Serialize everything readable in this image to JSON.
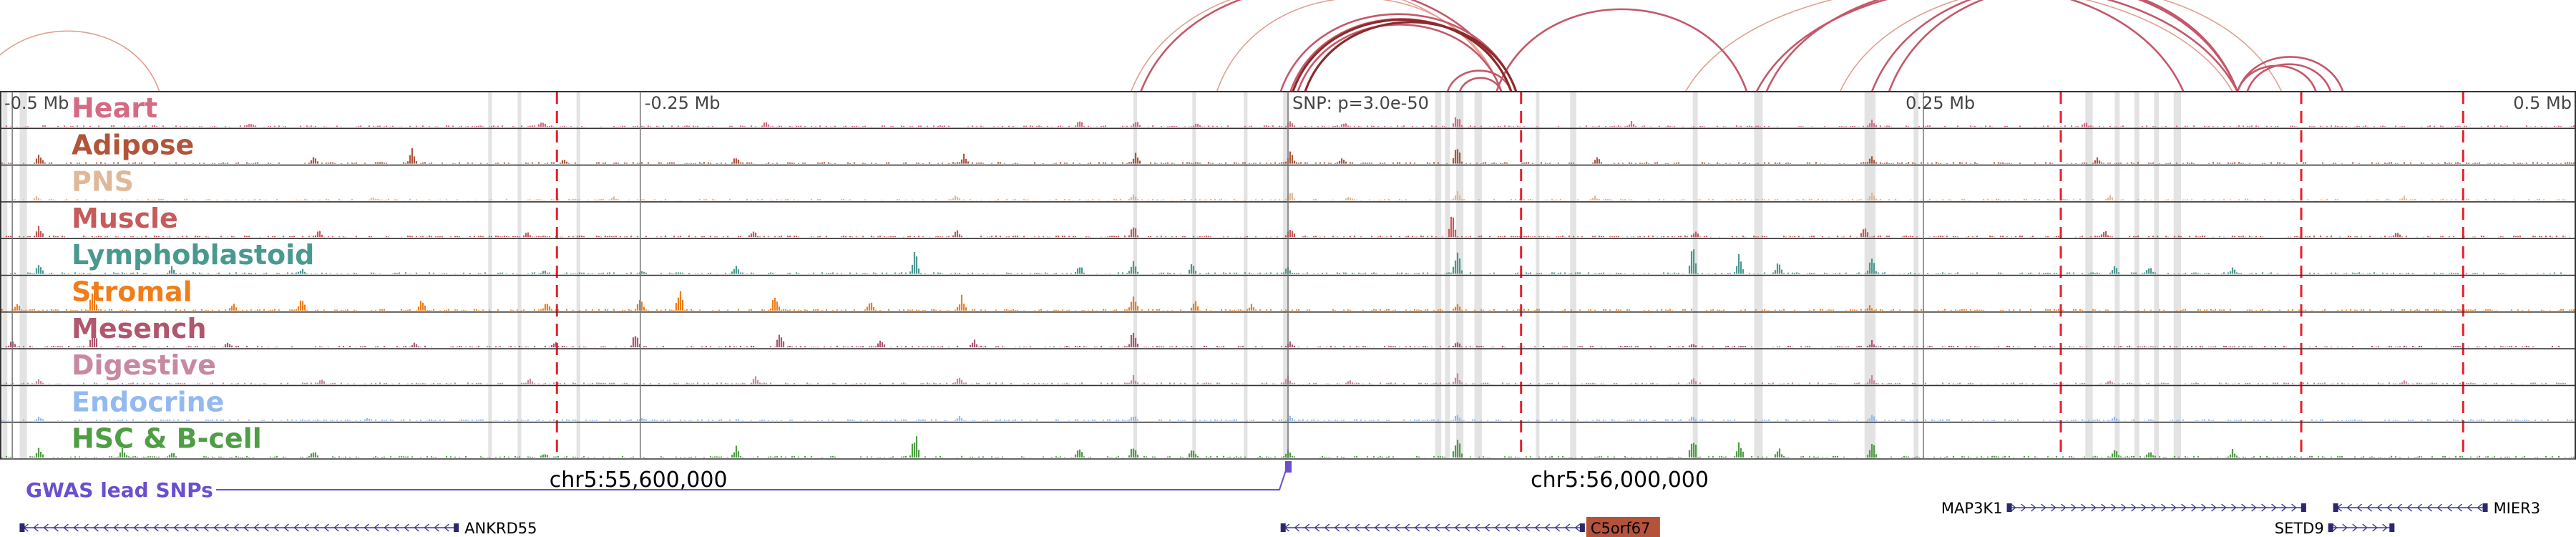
{
  "region": {
    "start": 55350000,
    "end": 56400000,
    "snp_position": 55875000
  },
  "ruler": {
    "labels": [
      {
        "text": "-0.5 Mb",
        "pos": 55350000,
        "anchor": "start"
      },
      {
        "text": "-0.25 Mb",
        "pos": 55611000,
        "anchor": "start"
      },
      {
        "text": "SNP: p=3.0e-50",
        "pos": 55875000,
        "anchor": "start"
      },
      {
        "text": "0.25 Mb",
        "pos": 56125000,
        "anchor": "start"
      },
      {
        "text": "0.5 Mb",
        "pos": 56400000,
        "anchor": "end"
      }
    ],
    "ticks": [
      55355000,
      55611000,
      55875000,
      56134000
    ]
  },
  "tracks": [
    {
      "name": "Heart",
      "color": "#d46b83"
    },
    {
      "name": "Adipose",
      "color": "#b0553a"
    },
    {
      "name": "PNS",
      "color": "#e0b899"
    },
    {
      "name": "Muscle",
      "color": "#c75a5a"
    },
    {
      "name": "Lymphoblastoid",
      "color": "#4a9990"
    },
    {
      "name": "Stromal",
      "color": "#f07d1a"
    },
    {
      "name": "Mesench",
      "color": "#b0566e"
    },
    {
      "name": "Digestive",
      "color": "#c888a2"
    },
    {
      "name": "Endocrine",
      "color": "#93baee"
    },
    {
      "name": "HSC & B-cell",
      "color": "#4f9e45"
    }
  ],
  "red_dashed_lines": [
    55577000,
    55970000,
    56190000,
    56288000,
    56354000
  ],
  "highlight_regions": [
    [
      55351000,
      55353000
    ],
    [
      55358000,
      55361000
    ],
    [
      55549000,
      55550500
    ],
    [
      55561000,
      55562500
    ],
    [
      55585000,
      55586500
    ],
    [
      55812000,
      55813500
    ],
    [
      55836000,
      55837500
    ],
    [
      55857000,
      55858500
    ],
    [
      55873000,
      55875500
    ],
    [
      55935000,
      55937500
    ],
    [
      55939000,
      55941000
    ],
    [
      55943500,
      55946500
    ],
    [
      55951000,
      55954000
    ],
    [
      55976000,
      55977500
    ],
    [
      55990000,
      55992500
    ],
    [
      56040000,
      56042000
    ],
    [
      56065000,
      56068500
    ],
    [
      56110000,
      56114500
    ],
    [
      56130000,
      56132000
    ],
    [
      56200000,
      56203000
    ],
    [
      56212000,
      56214000
    ],
    [
      56220000,
      56222000
    ],
    [
      56228000,
      56230000
    ],
    [
      56236000,
      56239000
    ]
  ],
  "arcs_coral": [
    [
      55340000,
      55415000
    ],
    [
      55811000,
      55962000
    ],
    [
      55846000,
      55962000
    ],
    [
      56037000,
      56260000
    ],
    [
      56100000,
      56280000
    ]
  ],
  "arcs_red": [
    [
      55815000,
      55966000
    ],
    [
      55872000,
      55968000
    ],
    [
      55876000,
      55966000
    ],
    [
      55879000,
      55962000
    ],
    [
      55940000,
      55966000
    ],
    [
      55945000,
      55962000
    ],
    [
      55960000,
      56062000
    ],
    [
      56066000,
      56262000
    ],
    [
      56070000,
      56240000
    ],
    [
      56113000,
      56262000
    ],
    [
      56120000,
      56262000
    ],
    [
      56262000,
      56294000
    ],
    [
      56262000,
      56305000
    ],
    [
      56266000,
      56300000
    ]
  ],
  "arcs_darkred": [
    [
      55877000,
      55966000
    ],
    [
      55882000,
      55968000
    ]
  ],
  "chart_data": {
    "type": "signal-tracks",
    "x_unit": "bp",
    "x_range": [
      55350000,
      56400000
    ],
    "tracks": [
      {
        "name": "Heart",
        "peaks": [
          [
            55452000,
            0.2
          ],
          [
            55571000,
            0.25
          ],
          [
            55662000,
            0.2
          ],
          [
            55790000,
            0.3
          ],
          [
            55813000,
            0.25
          ],
          [
            55838000,
            0.2
          ],
          [
            55876000,
            0.25
          ],
          [
            55898000,
            0.2
          ],
          [
            55944000,
            0.5
          ],
          [
            56015000,
            0.2
          ],
          [
            56113000,
            0.35
          ],
          [
            56200000,
            0.2
          ]
        ]
      },
      {
        "name": "Adipose",
        "peaks": [
          [
            55366000,
            0.5
          ],
          [
            55478000,
            0.35
          ],
          [
            55518000,
            0.55
          ],
          [
            55580000,
            0.2
          ],
          [
            55650000,
            0.3
          ],
          [
            55743000,
            0.35
          ],
          [
            55813000,
            0.5
          ],
          [
            55876000,
            0.6
          ],
          [
            55897000,
            0.3
          ],
          [
            55944000,
            0.7
          ],
          [
            56001000,
            0.25
          ],
          [
            56113000,
            0.35
          ],
          [
            56205000,
            0.25
          ]
        ]
      },
      {
        "name": "PNS",
        "peaks": [
          [
            55365000,
            0.2
          ],
          [
            55502000,
            0.15
          ],
          [
            55600000,
            0.15
          ],
          [
            55740000,
            0.25
          ],
          [
            55812000,
            0.25
          ],
          [
            55876000,
            0.4
          ],
          [
            55900000,
            0.2
          ],
          [
            55944000,
            0.35
          ],
          [
            56000000,
            0.2
          ],
          [
            56113000,
            0.3
          ],
          [
            56210000,
            0.2
          ],
          [
            56330000,
            0.15
          ]
        ]
      },
      {
        "name": "Muscle",
        "peaks": [
          [
            55366000,
            0.45
          ],
          [
            55480000,
            0.3
          ],
          [
            55565000,
            0.2
          ],
          [
            55657000,
            0.3
          ],
          [
            55740000,
            0.3
          ],
          [
            55812000,
            0.5
          ],
          [
            55876000,
            0.45
          ],
          [
            55942000,
            0.9
          ],
          [
            56041000,
            0.3
          ],
          [
            56110000,
            0.4
          ],
          [
            56208000,
            0.25
          ],
          [
            56327000,
            0.2
          ]
        ]
      },
      {
        "name": "Lymphoblastoid",
        "peaks": [
          [
            55366000,
            0.4
          ],
          [
            55420000,
            0.3
          ],
          [
            55473000,
            0.2
          ],
          [
            55572000,
            0.15
          ],
          [
            55612000,
            0.15
          ],
          [
            55650000,
            0.35
          ],
          [
            55723000,
            1.0
          ],
          [
            55790000,
            0.4
          ],
          [
            55812000,
            0.55
          ],
          [
            55836000,
            0.45
          ],
          [
            55875000,
            0.3
          ],
          [
            55944000,
            1.0
          ],
          [
            56040000,
            1.0
          ],
          [
            56059000,
            0.75
          ],
          [
            56075000,
            0.45
          ],
          [
            56113000,
            0.65
          ],
          [
            56212000,
            0.35
          ],
          [
            56226000,
            0.3
          ],
          [
            56260000,
            0.25
          ]
        ]
      },
      {
        "name": "Stromal",
        "peaks": [
          [
            55357000,
            0.3
          ],
          [
            55388000,
            0.95
          ],
          [
            55445000,
            0.3
          ],
          [
            55473000,
            0.55
          ],
          [
            55522000,
            0.55
          ],
          [
            55573000,
            0.4
          ],
          [
            55611000,
            0.5
          ],
          [
            55627000,
            0.85
          ],
          [
            55666000,
            0.75
          ],
          [
            55705000,
            0.4
          ],
          [
            55742000,
            0.55
          ],
          [
            55812000,
            0.8
          ],
          [
            55837000,
            0.45
          ],
          [
            55860000,
            0.25
          ],
          [
            55944000,
            0.25
          ],
          [
            56112000,
            0.2
          ]
        ]
      },
      {
        "name": "Mesench",
        "peaks": [
          [
            55355000,
            0.3
          ],
          [
            55388000,
            0.85
          ],
          [
            55443000,
            0.25
          ],
          [
            55519000,
            0.2
          ],
          [
            55576000,
            0.25
          ],
          [
            55609000,
            0.55
          ],
          [
            55668000,
            0.6
          ],
          [
            55709000,
            0.3
          ],
          [
            55747000,
            0.3
          ],
          [
            55812000,
            0.75
          ],
          [
            55876000,
            0.25
          ],
          [
            55944000,
            0.25
          ],
          [
            56040000,
            0.2
          ],
          [
            56113000,
            0.25
          ]
        ]
      },
      {
        "name": "Digestive",
        "peaks": [
          [
            55366000,
            0.2
          ],
          [
            55481000,
            0.2
          ],
          [
            55566000,
            0.2
          ],
          [
            55658000,
            0.3
          ],
          [
            55741000,
            0.35
          ],
          [
            55812000,
            0.3
          ],
          [
            55875000,
            0.3
          ],
          [
            55900000,
            0.2
          ],
          [
            55944000,
            0.4
          ],
          [
            56040000,
            0.25
          ],
          [
            56113000,
            0.3
          ],
          [
            56210000,
            0.2
          ],
          [
            56330000,
            0.15
          ]
        ]
      },
      {
        "name": "Endocrine",
        "peaks": [
          [
            55366000,
            0.2
          ],
          [
            55500000,
            0.15
          ],
          [
            55612000,
            0.15
          ],
          [
            55741000,
            0.2
          ],
          [
            55812000,
            0.25
          ],
          [
            55876000,
            0.2
          ],
          [
            55944000,
            0.25
          ],
          [
            56040000,
            0.2
          ],
          [
            56113000,
            0.25
          ],
          [
            56212000,
            0.15
          ]
        ]
      },
      {
        "name": "HSC & B-cell",
        "peaks": [
          [
            55366000,
            0.4
          ],
          [
            55400000,
            0.35
          ],
          [
            55420000,
            0.25
          ],
          [
            55478000,
            0.3
          ],
          [
            55572000,
            0.2
          ],
          [
            55650000,
            0.45
          ],
          [
            55723000,
            1.0
          ],
          [
            55790000,
            0.4
          ],
          [
            55812000,
            0.5
          ],
          [
            55836000,
            0.4
          ],
          [
            55875000,
            0.3
          ],
          [
            55944000,
            1.0
          ],
          [
            56040000,
            1.0
          ],
          [
            56059000,
            0.7
          ],
          [
            56075000,
            0.45
          ],
          [
            56113000,
            0.7
          ],
          [
            56212000,
            0.35
          ],
          [
            56226000,
            0.3
          ],
          [
            56260000,
            0.3
          ]
        ]
      }
    ]
  },
  "gwas": {
    "label": "GWAS lead SNPs",
    "color": "#6a4fcf",
    "snp_pos": 55875000
  },
  "coordinates": [
    {
      "text": "chr5:55,600,000",
      "pos": 55600000
    },
    {
      "text": "chr5:56,000,000",
      "pos": 56000000
    }
  ],
  "genes": [
    {
      "name": "ANKRD55",
      "start": 55358000,
      "end": 55537000,
      "strand": "-",
      "row": 2,
      "label_side": "right"
    },
    {
      "name": "C5orf67",
      "start": 55872000,
      "end": 55996000,
      "strand": "-",
      "row": 2,
      "label_side": "right",
      "highlight": "#b5523a"
    },
    {
      "name": "MAP3K1",
      "start": 56168000,
      "end": 56290000,
      "strand": "+",
      "row": 0,
      "label_side": "left"
    },
    {
      "name": "MIER3",
      "start": 56301000,
      "end": 56364000,
      "strand": "-",
      "row": 0,
      "label_side": "right"
    },
    {
      "name": "SETD9",
      "start": 56299000,
      "end": 56326000,
      "strand": "+",
      "row": 1,
      "label_side": "left"
    }
  ]
}
